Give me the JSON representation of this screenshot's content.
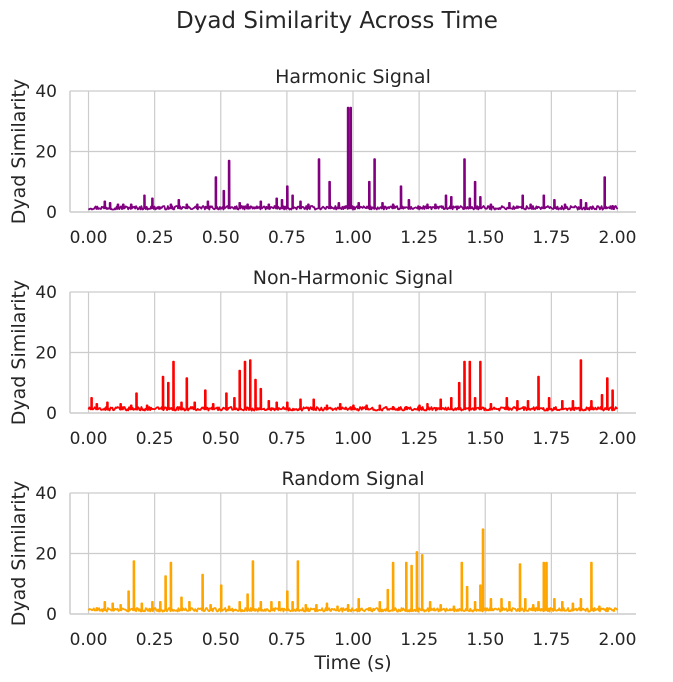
{
  "figure": {
    "suptitle": "Dyad Similarity Across Time"
  },
  "chart_data": [
    {
      "type": "line",
      "title": "Harmonic Signal",
      "ylabel": "Dyad Similarity",
      "xlabel": "",
      "xlim": [
        -0.07,
        2.07
      ],
      "ylim": [
        0,
        40
      ],
      "xticks": [
        "0.00",
        "0.25",
        "0.50",
        "0.75",
        "1.00",
        "1.25",
        "1.50",
        "1.75",
        "2.00"
      ],
      "yticks": [
        "0",
        "20",
        "40"
      ],
      "grid": true,
      "color": "#800080",
      "spikes": [
        [
          0.06,
          3.5
        ],
        [
          0.08,
          3
        ],
        [
          0.11,
          2.5
        ],
        [
          0.13,
          2.5
        ],
        [
          0.16,
          2.5
        ],
        [
          0.21,
          5.5
        ],
        [
          0.24,
          4.5
        ],
        [
          0.31,
          2.5
        ],
        [
          0.34,
          4
        ],
        [
          0.37,
          2.5
        ],
        [
          0.41,
          2.5
        ],
        [
          0.45,
          3.5
        ],
        [
          0.48,
          11.5
        ],
        [
          0.51,
          7
        ],
        [
          0.53,
          17
        ],
        [
          0.57,
          3
        ],
        [
          0.6,
          2.5
        ],
        [
          0.65,
          3.5
        ],
        [
          0.68,
          2.5
        ],
        [
          0.71,
          4.5
        ],
        [
          0.73,
          4
        ],
        [
          0.75,
          8.5
        ],
        [
          0.77,
          5.5
        ],
        [
          0.8,
          3.5
        ],
        [
          0.83,
          2.5
        ],
        [
          0.87,
          17.5
        ],
        [
          0.91,
          10
        ],
        [
          0.945,
          3
        ],
        [
          0.98,
          34.5
        ],
        [
          0.99,
          34.5
        ],
        [
          1.02,
          3
        ],
        [
          1.06,
          10
        ],
        [
          1.08,
          17.5
        ],
        [
          1.11,
          3
        ],
        [
          1.15,
          2.5
        ],
        [
          1.18,
          8.5
        ],
        [
          1.21,
          4
        ],
        [
          1.28,
          2.5
        ],
        [
          1.31,
          2.5
        ],
        [
          1.35,
          5.5
        ],
        [
          1.37,
          5
        ],
        [
          1.42,
          17.5
        ],
        [
          1.44,
          4.5
        ],
        [
          1.46,
          10
        ],
        [
          1.48,
          5
        ],
        [
          1.52,
          2.5
        ],
        [
          1.59,
          3
        ],
        [
          1.64,
          5.5
        ],
        [
          1.67,
          2.5
        ],
        [
          1.72,
          5.5
        ],
        [
          1.76,
          4
        ],
        [
          1.8,
          2.5
        ],
        [
          1.86,
          4
        ],
        [
          1.88,
          3
        ],
        [
          1.95,
          11.5
        ],
        [
          1.98,
          2
        ]
      ]
    },
    {
      "type": "line",
      "title": "Non-Harmonic Signal",
      "ylabel": "Dyad Similarity",
      "xlabel": "",
      "xlim": [
        -0.07,
        2.07
      ],
      "ylim": [
        0,
        40
      ],
      "xticks": [
        "0.00",
        "0.25",
        "0.50",
        "0.75",
        "1.00",
        "1.25",
        "1.50",
        "1.75",
        "2.00"
      ],
      "yticks": [
        "0",
        "20",
        "40"
      ],
      "grid": true,
      "color": "#ff0000",
      "spikes": [
        [
          0.01,
          5
        ],
        [
          0.03,
          3
        ],
        [
          0.07,
          3.5
        ],
        [
          0.12,
          3
        ],
        [
          0.16,
          2.5
        ],
        [
          0.18,
          6.5
        ],
        [
          0.22,
          2.5
        ],
        [
          0.28,
          12
        ],
        [
          0.3,
          10
        ],
        [
          0.32,
          17
        ],
        [
          0.35,
          3.5
        ],
        [
          0.37,
          11.5
        ],
        [
          0.4,
          3.5
        ],
        [
          0.44,
          7.5
        ],
        [
          0.47,
          3
        ],
        [
          0.52,
          6.5
        ],
        [
          0.55,
          5
        ],
        [
          0.57,
          14
        ],
        [
          0.59,
          17
        ],
        [
          0.61,
          17.5
        ],
        [
          0.63,
          11
        ],
        [
          0.65,
          8
        ],
        [
          0.68,
          4
        ],
        [
          0.71,
          3.5
        ],
        [
          0.75,
          3.5
        ],
        [
          0.8,
          4.5
        ],
        [
          0.85,
          4.5
        ],
        [
          0.9,
          2.5
        ],
        [
          0.95,
          3
        ],
        [
          1.0,
          2.5
        ],
        [
          1.05,
          2.5
        ],
        [
          1.1,
          2.5
        ],
        [
          1.15,
          2
        ],
        [
          1.2,
          2
        ],
        [
          1.25,
          2.5
        ],
        [
          1.28,
          3
        ],
        [
          1.33,
          4.5
        ],
        [
          1.37,
          5
        ],
        [
          1.4,
          10
        ],
        [
          1.42,
          17
        ],
        [
          1.44,
          17
        ],
        [
          1.46,
          5
        ],
        [
          1.48,
          17
        ],
        [
          1.52,
          3
        ],
        [
          1.58,
          5
        ],
        [
          1.62,
          4
        ],
        [
          1.66,
          4
        ],
        [
          1.7,
          12
        ],
        [
          1.74,
          5
        ],
        [
          1.79,
          4
        ],
        [
          1.83,
          4
        ],
        [
          1.86,
          17.5
        ],
        [
          1.9,
          4
        ],
        [
          1.94,
          6
        ],
        [
          1.96,
          11.5
        ],
        [
          1.98,
          7.5
        ]
      ]
    },
    {
      "type": "line",
      "title": "Random Signal",
      "ylabel": "Dyad Similarity",
      "xlabel": "Time (s)",
      "xlim": [
        -0.07,
        2.07
      ],
      "ylim": [
        0,
        40
      ],
      "xticks": [
        "0.00",
        "0.25",
        "0.50",
        "0.75",
        "1.00",
        "1.25",
        "1.50",
        "1.75",
        "2.00"
      ],
      "yticks": [
        "0",
        "20",
        "40"
      ],
      "grid": true,
      "color": "#ffa500",
      "spikes": [
        [
          0.03,
          2
        ],
        [
          0.06,
          4
        ],
        [
          0.09,
          3.5
        ],
        [
          0.12,
          3
        ],
        [
          0.15,
          7.5
        ],
        [
          0.17,
          17.5
        ],
        [
          0.2,
          3.5
        ],
        [
          0.24,
          4
        ],
        [
          0.27,
          4
        ],
        [
          0.29,
          12.5
        ],
        [
          0.31,
          17
        ],
        [
          0.35,
          5.5
        ],
        [
          0.38,
          4
        ],
        [
          0.43,
          13
        ],
        [
          0.46,
          3
        ],
        [
          0.5,
          9.5
        ],
        [
          0.53,
          2.5
        ],
        [
          0.57,
          4
        ],
        [
          0.6,
          6.5
        ],
        [
          0.62,
          17.5
        ],
        [
          0.65,
          4
        ],
        [
          0.69,
          4
        ],
        [
          0.72,
          4
        ],
        [
          0.75,
          7.5
        ],
        [
          0.77,
          4
        ],
        [
          0.79,
          17.5
        ],
        [
          0.82,
          3
        ],
        [
          0.86,
          3
        ],
        [
          0.9,
          3.5
        ],
        [
          0.94,
          2.5
        ],
        [
          0.98,
          3
        ],
        [
          1.02,
          5
        ],
        [
          1.06,
          2
        ],
        [
          1.1,
          4
        ],
        [
          1.13,
          8
        ],
        [
          1.15,
          17
        ],
        [
          1.2,
          17
        ],
        [
          1.22,
          16
        ],
        [
          1.24,
          20.5
        ],
        [
          1.26,
          19.5
        ],
        [
          1.29,
          4
        ],
        [
          1.33,
          3
        ],
        [
          1.38,
          2.5
        ],
        [
          1.41,
          17
        ],
        [
          1.43,
          9
        ],
        [
          1.46,
          4
        ],
        [
          1.48,
          9.5
        ],
        [
          1.49,
          28
        ],
        [
          1.52,
          5
        ],
        [
          1.56,
          5
        ],
        [
          1.59,
          4
        ],
        [
          1.63,
          16.5
        ],
        [
          1.65,
          5
        ],
        [
          1.68,
          3
        ],
        [
          1.7,
          4
        ],
        [
          1.72,
          17
        ],
        [
          1.73,
          17
        ],
        [
          1.76,
          5
        ],
        [
          1.79,
          4
        ],
        [
          1.83,
          3.5
        ],
        [
          1.86,
          5
        ],
        [
          1.9,
          17
        ],
        [
          1.93,
          2.5
        ],
        [
          1.96,
          2
        ]
      ]
    }
  ]
}
